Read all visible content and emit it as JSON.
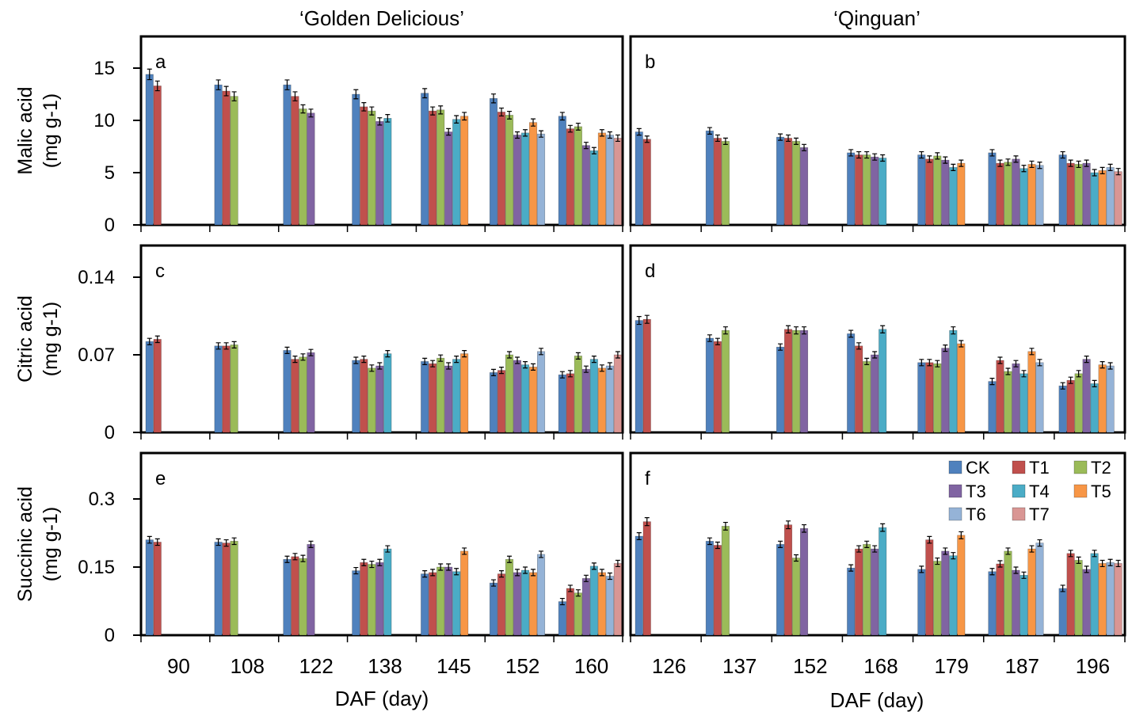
{
  "figure": {
    "col_titles": [
      "‘Golden Delicious’",
      "‘Qinguan’"
    ],
    "xlabel": "DAF (day)"
  },
  "legend": {
    "placement": "top-right of panel f",
    "entries": [
      {
        "name": "CK",
        "color": "#4f81bd"
      },
      {
        "name": "T1",
        "color": "#c0504d"
      },
      {
        "name": "T2",
        "color": "#9bbb59"
      },
      {
        "name": "T3",
        "color": "#8064a2"
      },
      {
        "name": "T4",
        "color": "#4bacc6"
      },
      {
        "name": "T5",
        "color": "#f79646"
      },
      {
        "name": "T6",
        "color": "#95b3d7"
      },
      {
        "name": "T7",
        "color": "#d99694"
      }
    ]
  },
  "chart_data": [
    {
      "type": "bar",
      "panel": "a",
      "label": "a",
      "ylabel": "Malic acid",
      "yunit": "(mg g-1)",
      "ylim": [
        0,
        15
      ],
      "yticks": [
        "0",
        "5",
        "10",
        "15"
      ],
      "ytick_values": [
        0,
        5,
        10,
        15
      ],
      "categories": [
        "90",
        "108",
        "122",
        "138",
        "145",
        "152",
        "160"
      ],
      "values": [
        [
          14.4,
          13.3
        ],
        [
          13.4,
          12.8,
          12.3
        ],
        [
          13.4,
          12.3,
          11.1,
          10.7
        ],
        [
          12.5,
          11.3,
          10.9,
          9.9,
          10.2
        ],
        [
          12.6,
          10.9,
          11.0,
          8.9,
          10.1,
          10.4
        ],
        [
          12.1,
          10.8,
          10.5,
          8.6,
          8.8,
          9.8,
          8.7
        ],
        [
          10.4,
          9.2,
          9.4,
          7.6,
          7.1,
          8.8,
          8.6,
          8.3
        ]
      ]
    },
    {
      "type": "bar",
      "panel": "b",
      "label": "b",
      "ylabel": "",
      "yunit": "",
      "ylim": [
        0,
        15
      ],
      "yticks": [],
      "ytick_values": [
        0,
        5,
        10,
        15
      ],
      "categories": [
        "126",
        "137",
        "152",
        "168",
        "179",
        "187",
        "196"
      ],
      "values": [
        [
          8.9,
          8.2
        ],
        [
          9.0,
          8.3,
          8.0
        ],
        [
          8.4,
          8.3,
          8.0,
          7.4
        ],
        [
          6.9,
          6.7,
          6.7,
          6.5,
          6.4
        ],
        [
          6.7,
          6.3,
          6.6,
          6.2,
          5.5,
          5.9
        ],
        [
          6.9,
          5.9,
          6.0,
          6.3,
          5.4,
          5.8,
          5.7
        ],
        [
          6.7,
          5.9,
          5.8,
          5.9,
          5.0,
          5.2,
          5.5,
          5.1
        ]
      ]
    },
    {
      "type": "bar",
      "panel": "c",
      "label": "c",
      "ylabel": "Citric acid",
      "yunit": "(mg g-1)",
      "ylim": [
        0,
        0.14
      ],
      "yticks": [
        "0",
        "0.07",
        "0.14"
      ],
      "ytick_values": [
        0,
        0.07,
        0.14
      ],
      "categories": [
        "90",
        "108",
        "122",
        "138",
        "145",
        "152",
        "160"
      ],
      "values": [
        [
          0.082,
          0.084
        ],
        [
          0.078,
          0.078,
          0.079
        ],
        [
          0.074,
          0.066,
          0.068,
          0.072
        ],
        [
          0.065,
          0.066,
          0.058,
          0.06,
          0.071
        ],
        [
          0.064,
          0.062,
          0.067,
          0.06,
          0.066,
          0.071
        ],
        [
          0.054,
          0.056,
          0.07,
          0.065,
          0.061,
          0.059,
          0.073
        ],
        [
          0.052,
          0.053,
          0.069,
          0.057,
          0.066,
          0.058,
          0.06,
          0.07
        ]
      ]
    },
    {
      "type": "bar",
      "panel": "d",
      "label": "d",
      "ylabel": "",
      "yunit": "",
      "ylim": [
        0,
        0.14
      ],
      "yticks": [],
      "ytick_values": [
        0,
        0.07,
        0.14
      ],
      "categories": [
        "126",
        "137",
        "152",
        "168",
        "179",
        "187",
        "196"
      ],
      "values": [
        [
          0.101,
          0.102
        ],
        [
          0.085,
          0.082,
          0.092
        ],
        [
          0.077,
          0.093,
          0.092,
          0.092
        ],
        [
          0.089,
          0.078,
          0.064,
          0.07,
          0.093
        ],
        [
          0.063,
          0.063,
          0.062,
          0.076,
          0.092,
          0.08
        ],
        [
          0.046,
          0.065,
          0.055,
          0.062,
          0.053,
          0.073,
          0.063
        ],
        [
          0.042,
          0.047,
          0.053,
          0.066,
          0.044,
          0.061,
          0.06
        ]
      ]
    },
    {
      "type": "bar",
      "panel": "e",
      "label": "e",
      "ylabel": "Succinic acid",
      "yunit": "(mg g-1)",
      "ylim": [
        0,
        0.3
      ],
      "yticks": [
        "0",
        "0.15",
        "0.3"
      ],
      "ytick_values": [
        0,
        0.15,
        0.3
      ],
      "categories": [
        "90",
        "108",
        "122",
        "138",
        "145",
        "152",
        "160"
      ],
      "values": [
        [
          0.21,
          0.205
        ],
        [
          0.205,
          0.203,
          0.207
        ],
        [
          0.167,
          0.173,
          0.169,
          0.2
        ],
        [
          0.142,
          0.16,
          0.156,
          0.16,
          0.19
        ],
        [
          0.135,
          0.138,
          0.15,
          0.15,
          0.14,
          0.185
        ],
        [
          0.115,
          0.135,
          0.167,
          0.138,
          0.143,
          0.138,
          0.178
        ],
        [
          0.074,
          0.103,
          0.093,
          0.125,
          0.152,
          0.138,
          0.13,
          0.158
        ]
      ]
    },
    {
      "type": "bar",
      "panel": "f",
      "label": "f",
      "ylabel": "",
      "yunit": "",
      "ylim": [
        0,
        0.3
      ],
      "yticks": [],
      "ytick_values": [
        0,
        0.15,
        0.3
      ],
      "categories": [
        "126",
        "137",
        "152",
        "168",
        "179",
        "187",
        "196"
      ],
      "values": [
        [
          0.218,
          0.25
        ],
        [
          0.207,
          0.198,
          0.24
        ],
        [
          0.2,
          0.243,
          0.17,
          0.235
        ],
        [
          0.148,
          0.19,
          0.2,
          0.19,
          0.237
        ],
        [
          0.145,
          0.21,
          0.163,
          0.185,
          0.175,
          0.22
        ],
        [
          0.14,
          0.157,
          0.185,
          0.143,
          0.132,
          0.19,
          0.203
        ],
        [
          0.103,
          0.18,
          0.165,
          0.145,
          0.18,
          0.158,
          0.16,
          0.158
        ]
      ]
    }
  ]
}
